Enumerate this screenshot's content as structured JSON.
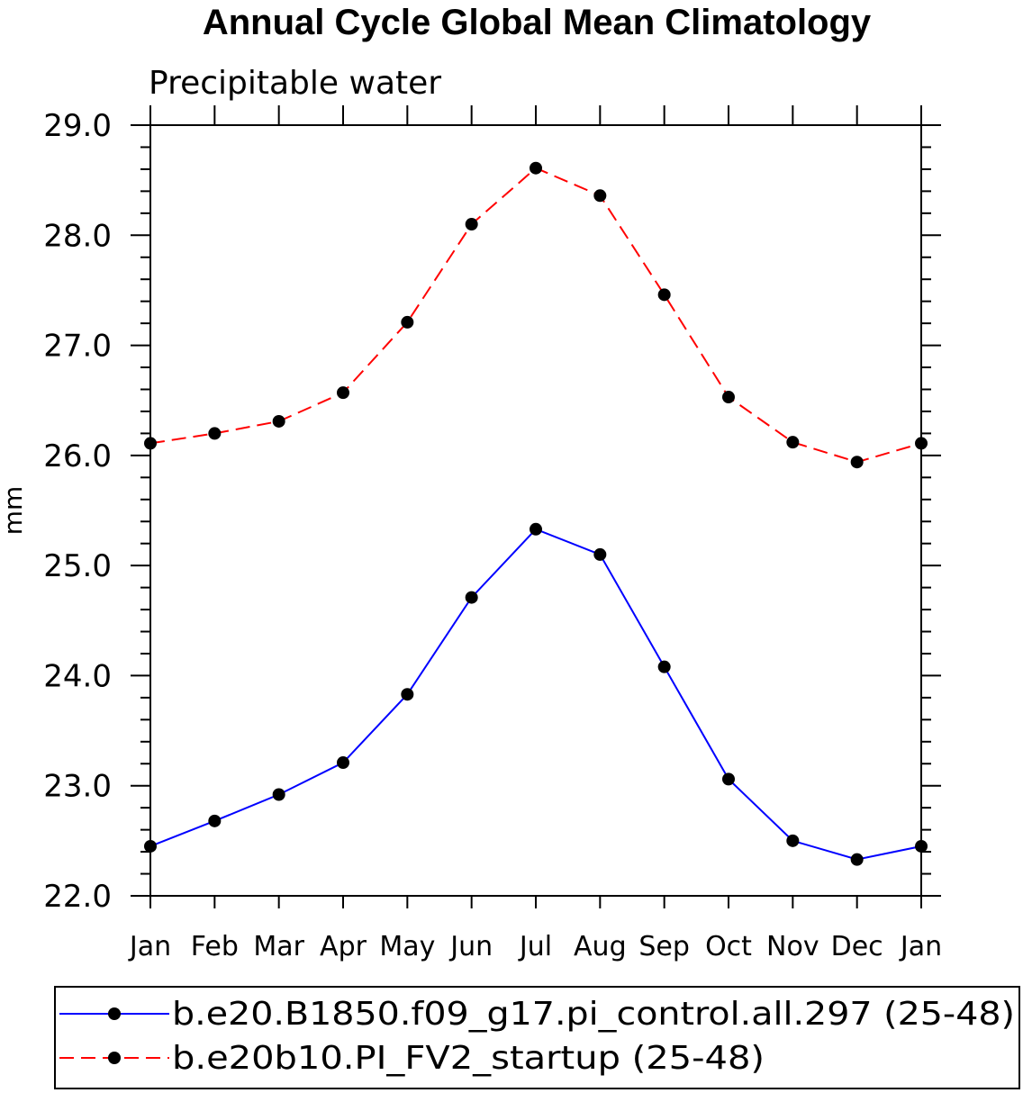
{
  "chart_data": {
    "type": "line",
    "title": "Annual Cycle Global Mean Climatology",
    "subtitle": "Precipitable water",
    "xlabel": "",
    "ylabel": "mm",
    "categories": [
      "Jan",
      "Feb",
      "Mar",
      "Apr",
      "May",
      "Jun",
      "Jul",
      "Aug",
      "Sep",
      "Oct",
      "Nov",
      "Dec",
      "Jan"
    ],
    "ylim": [
      22.0,
      29.0
    ],
    "yticks": [
      "22.0",
      "23.0",
      "24.0",
      "25.0",
      "26.0",
      "27.0",
      "28.0",
      "29.0"
    ],
    "grid": false,
    "legend_position": "bottom",
    "series": [
      {
        "name": "b.e20.B1850.f09_g17.pi_control.all.297 (25-48)",
        "color": "#0000ff",
        "style": "solid",
        "marker": "filled-circle",
        "values": [
          22.45,
          22.68,
          22.92,
          23.21,
          23.83,
          24.71,
          25.33,
          25.1,
          24.08,
          23.06,
          22.5,
          22.33,
          22.45
        ]
      },
      {
        "name": "b.e20b10.PI_FV2_startup (25-48)",
        "color": "#ff0000",
        "style": "dashed",
        "marker": "filled-circle",
        "values": [
          26.11,
          26.2,
          26.31,
          26.57,
          27.21,
          28.1,
          28.61,
          28.36,
          27.46,
          26.53,
          26.12,
          25.94,
          26.11
        ]
      }
    ]
  }
}
